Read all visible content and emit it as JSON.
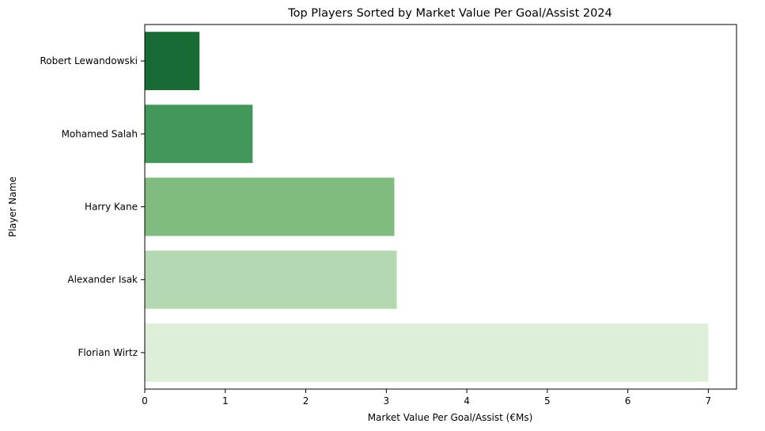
{
  "chart_data": {
    "type": "bar",
    "orientation": "horizontal",
    "title": "Top Players Sorted by Market Value Per Goal/Assist 2024",
    "xlabel": "Market Value Per Goal/Assist (€Ms)",
    "ylabel": "Player Name",
    "categories": [
      "Robert Lewandowski",
      "Mohamed Salah",
      "Harry Kane",
      "Alexander Isak",
      "Florian Wirtz"
    ],
    "values": [
      0.68,
      1.34,
      3.1,
      3.13,
      7.0
    ],
    "colors": [
      "#196b36",
      "#43975a",
      "#80bb7f",
      "#b4d8b1",
      "#ddefd9"
    ],
    "xlim": [
      0,
      7.35
    ],
    "xticks": [
      0,
      1,
      2,
      3,
      4,
      5,
      6,
      7
    ],
    "grid": false,
    "legend": "none"
  }
}
